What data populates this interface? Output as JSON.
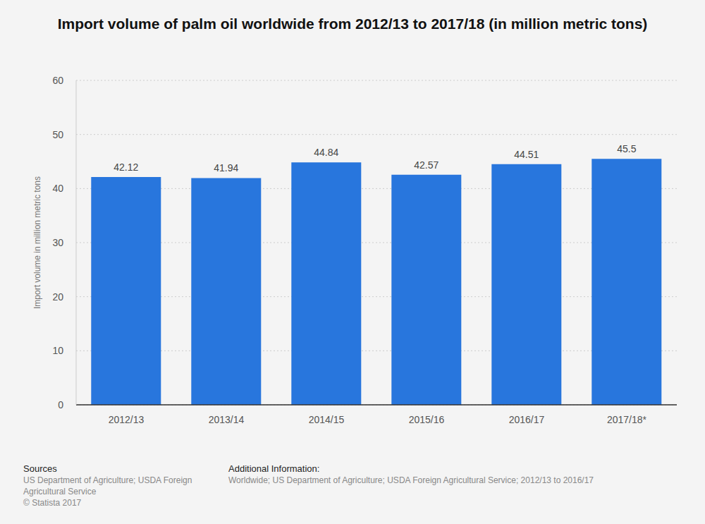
{
  "chart_data": {
    "type": "bar",
    "title": "Import volume of palm oil worldwide from 2012/13 to 2017/18 (in million metric tons)",
    "y_label": "Import volume in million metric tons",
    "categories": [
      "2012/13",
      "2013/14",
      "2014/15",
      "2015/16",
      "2016/17",
      "2017/18*"
    ],
    "values": [
      42.12,
      41.94,
      44.84,
      42.57,
      44.51,
      45.5
    ],
    "color": "#2876dd",
    "ylim": [
      0,
      60
    ],
    "yticks": [
      0,
      10,
      20,
      30,
      40,
      50,
      60
    ],
    "grid": true,
    "data_labels": true
  },
  "footer": {
    "sources_title": "Sources",
    "sources": [
      "US Department of Agriculture; USDA Foreign Agricultural Service",
      "© Statista 2017"
    ],
    "additional_title": "Additional Information:",
    "additional": "Worldwide; US Department of Agriculture; USDA Foreign Agricultural Service; 2012/13 to 2016/17"
  }
}
